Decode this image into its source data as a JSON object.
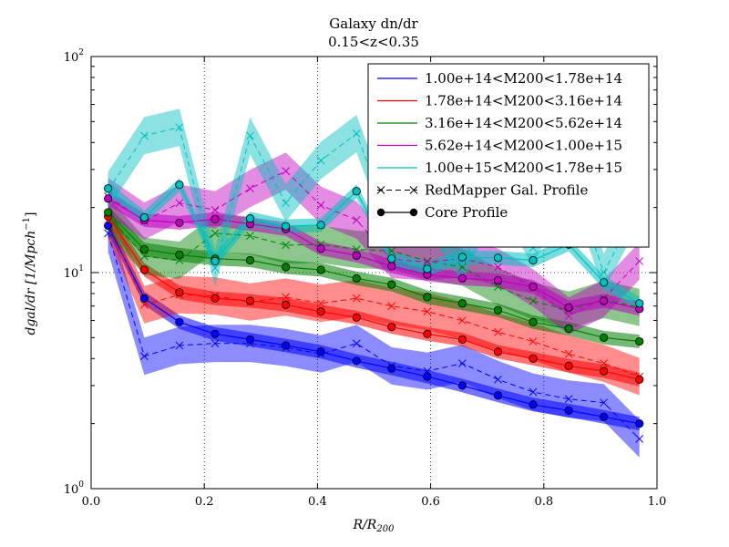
{
  "chart_data": {
    "type": "line",
    "title": "Galaxy dn/dr",
    "subtitle": "0.15<z<0.35",
    "xlabel": "R/R200",
    "ylabel": "dgal/dr [1/Mpch^-1]",
    "xlim": [
      0.0,
      1.0
    ],
    "ylim": [
      1,
      100
    ],
    "yscale": "log",
    "grid": "dotted",
    "legend_position": "top-right",
    "x_ticks": [
      "0.0",
      "0.2",
      "0.4",
      "0.6",
      "0.8",
      "1.0"
    ],
    "y_ticks": [
      {
        "base": "10",
        "exp": "0"
      },
      {
        "base": "10",
        "exp": "1"
      },
      {
        "base": "10",
        "exp": "2"
      }
    ],
    "x": [
      0.03,
      0.094,
      0.156,
      0.219,
      0.281,
      0.344,
      0.406,
      0.469,
      0.531,
      0.594,
      0.656,
      0.719,
      0.781,
      0.844,
      0.906,
      0.969
    ],
    "series": [
      {
        "name": "1.00e+14<M200<1.78e+14",
        "color": "#0000ff",
        "core": [
          16.5,
          7.6,
          5.9,
          5.2,
          4.9,
          4.6,
          4.3,
          3.9,
          3.6,
          3.3,
          3.0,
          2.7,
          2.45,
          2.3,
          2.15,
          2.0
        ],
        "redmapper": [
          15.2,
          4.1,
          4.6,
          4.7,
          4.7,
          4.5,
          4.2,
          4.7,
          3.7,
          3.5,
          3.8,
          3.2,
          2.8,
          2.6,
          2.5,
          1.7
        ]
      },
      {
        "name": "1.78e+14<M200<3.16e+14",
        "color": "#ff0000",
        "core": [
          18.2,
          10.3,
          8.1,
          7.6,
          7.4,
          7.1,
          6.6,
          6.2,
          5.6,
          5.2,
          4.9,
          4.3,
          4.0,
          3.7,
          3.5,
          3.2
        ],
        "redmapper": [
          17.5,
          7.1,
          7.9,
          7.8,
          7.3,
          7.7,
          7.2,
          7.6,
          7.0,
          6.6,
          6.0,
          5.3,
          4.8,
          4.2,
          3.8,
          3.3
        ]
      },
      {
        "name": "3.16e+14<M200<5.62e+14",
        "color": "#008000",
        "core": [
          19.0,
          12.8,
          12.1,
          11.6,
          11.4,
          10.6,
          10.3,
          9.4,
          8.8,
          7.7,
          7.2,
          6.7,
          5.9,
          5.5,
          5.0,
          4.8
        ],
        "redmapper": [
          18.5,
          11.9,
          11.4,
          15.2,
          14.8,
          13.4,
          13.5,
          12.8,
          12.6,
          11.3,
          10.6,
          8.6,
          7.4,
          6.7,
          7.5,
          6.9
        ]
      },
      {
        "name": "5.62e+14<M200<1.00e+15",
        "color": "#bf00bf",
        "core": [
          22.0,
          17.5,
          17.0,
          17.7,
          16.8,
          15.9,
          12.9,
          12.0,
          10.7,
          9.8,
          9.4,
          9.2,
          8.6,
          6.9,
          7.4,
          6.8
        ],
        "redmapper": [
          22.5,
          17.3,
          21.0,
          19.5,
          24.5,
          29.5,
          20.5,
          17.5,
          11.5,
          11.2,
          11.6,
          10.6,
          8.5,
          6.3,
          7.6,
          11.3
        ]
      },
      {
        "name": "1.00e+15<M200<1.78e+15",
        "color": "#00bfbf",
        "core": [
          24.5,
          18.0,
          25.5,
          11.3,
          17.8,
          16.4,
          16.6,
          23.8,
          11.6,
          10.4,
          11.8,
          11.7,
          11.4,
          13.5,
          9.0,
          7.2
        ],
        "redmapper": [
          24.0,
          43.0,
          47.0,
          10.5,
          43.0,
          21.0,
          33.0,
          44.0,
          16.0,
          19.0,
          11.0,
          25.0,
          13.0,
          30.0,
          10.0,
          21.0
        ]
      }
    ],
    "legend_extra": [
      {
        "name": "RedMapper Gal. Profile",
        "style": "dashed-x"
      },
      {
        "name": "Core Profile",
        "style": "solid-circle"
      }
    ]
  }
}
